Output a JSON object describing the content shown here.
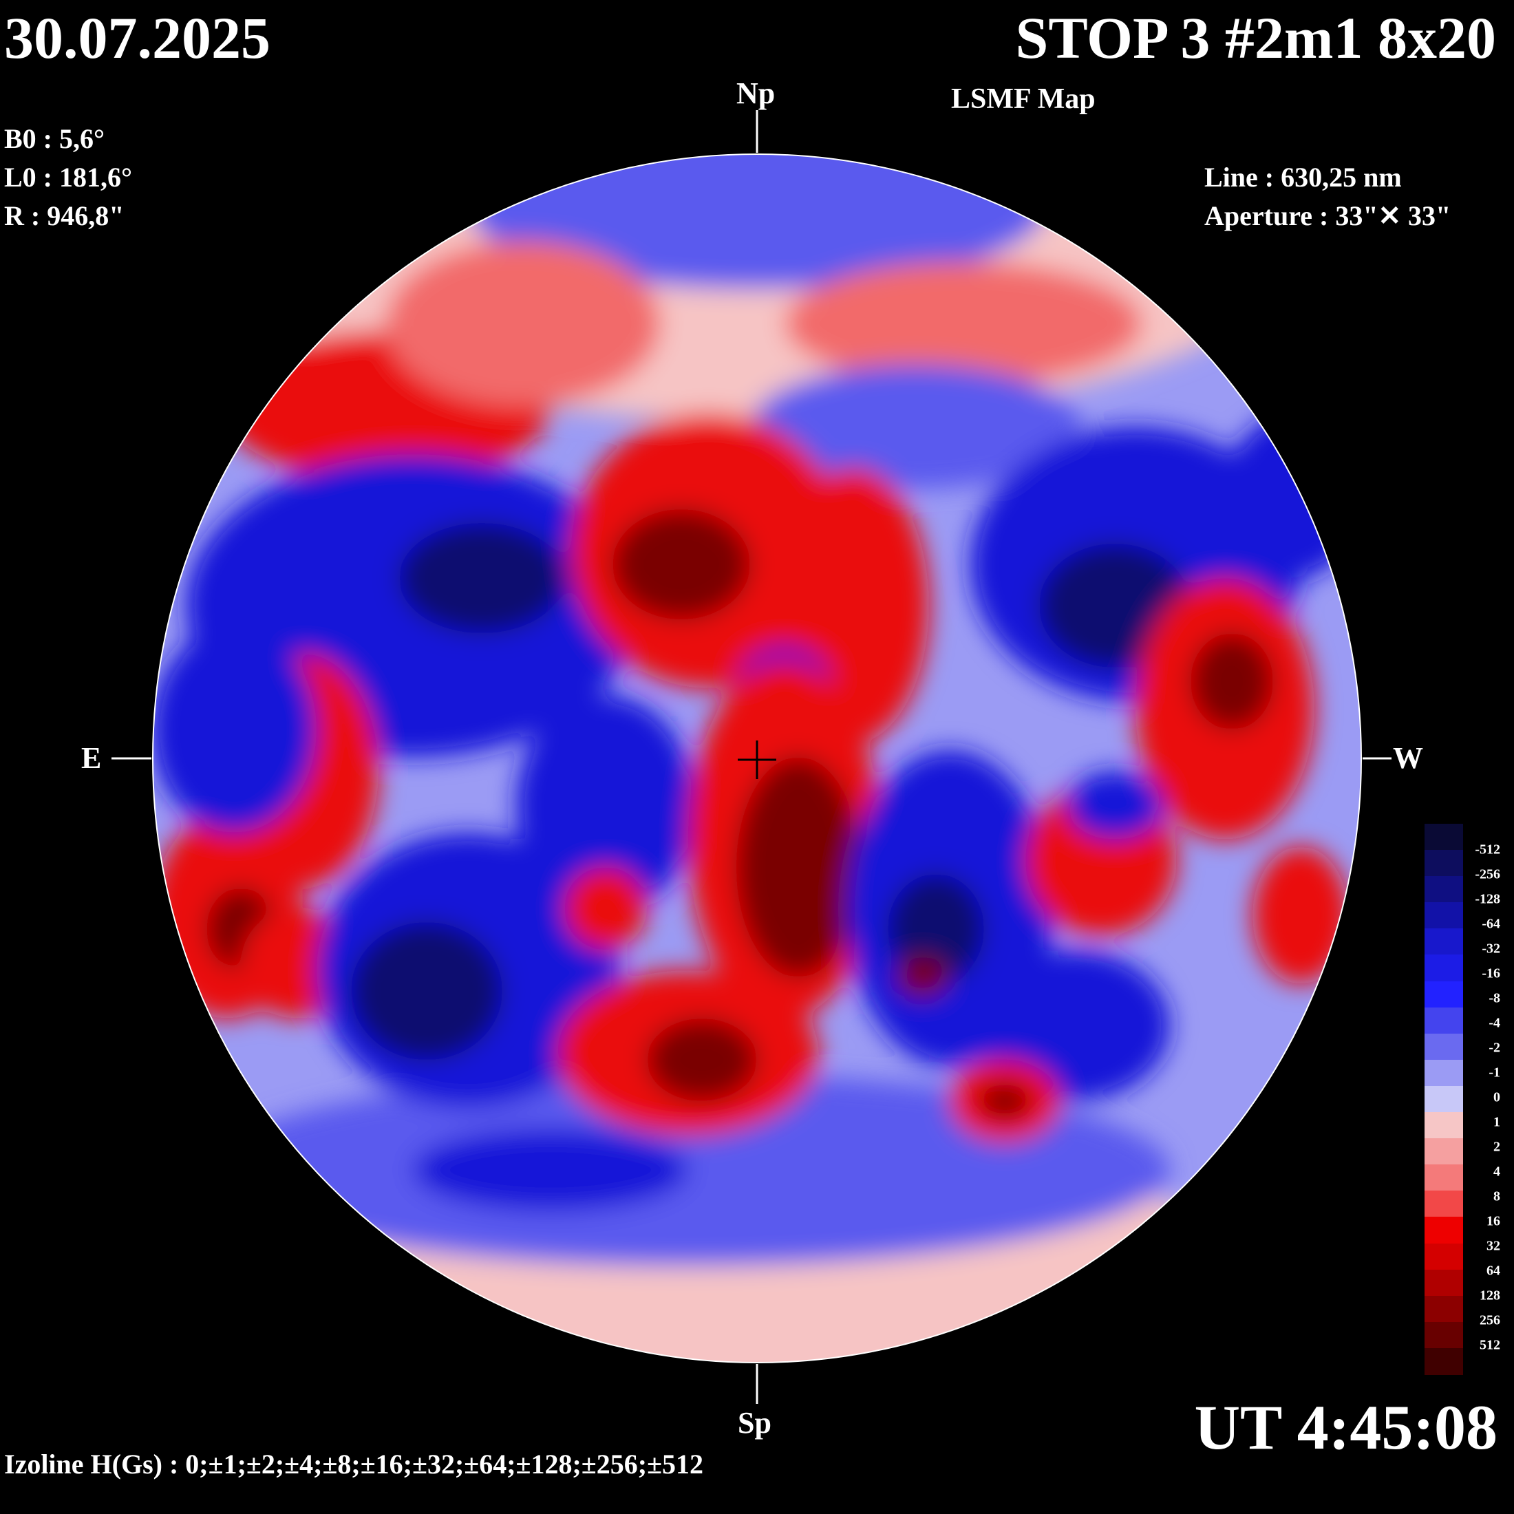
{
  "header": {
    "date": "30.07.2025",
    "title": "STOP 3 #2m1 8x20",
    "subtitle": "LSMF  Map"
  },
  "parameters": {
    "b0": "B0 : 5,6°",
    "l0": "L0 : 181,6°",
    "r": "R  : 946,8\""
  },
  "instrument": {
    "line": "Line :  630,25 nm",
    "aperture": "Aperture : 33\"✕ 33\""
  },
  "compass": {
    "north": "Np",
    "south": "Sp",
    "east": "E",
    "west": "W"
  },
  "time": "UT 4:45:08",
  "izoline": "Izoline H(Gs) : 0;±1;±2;±4;±8;±16;±32;±64;±128;±256;±512",
  "colorbar": {
    "levels": [
      "-512",
      "-256",
      "-128",
      "-64",
      "-32",
      "-16",
      "-8",
      "-4",
      "-2",
      "-1",
      "0",
      "1",
      "2",
      "4",
      "8",
      "16",
      "32",
      "64",
      "128",
      "256",
      "512"
    ],
    "colors": [
      "#0a0a35",
      "#0d0d5e",
      "#0f0f82",
      "#1212a8",
      "#1818cc",
      "#1c1ce6",
      "#2222ff",
      "#4444ee",
      "#6a6af0",
      "#9b9bf4",
      "#c8c8f8",
      "#f6c6c6",
      "#f5a0a0",
      "#f47a7a",
      "#f24848",
      "#ee0000",
      "#d40000",
      "#b00000",
      "#8c0000",
      "#680000",
      "#400000"
    ]
  },
  "map_colors": {
    "neg_strong": "#0a0a70",
    "neg": "#1414d8",
    "neg_weak": "#5a5aee",
    "neutral_neg": "#c0c0f6",
    "neutral_pos": "#f6c4c4",
    "pos_weak": "#f26a6a",
    "pos": "#ea0a0a",
    "pos_strong": "#7a0000"
  }
}
